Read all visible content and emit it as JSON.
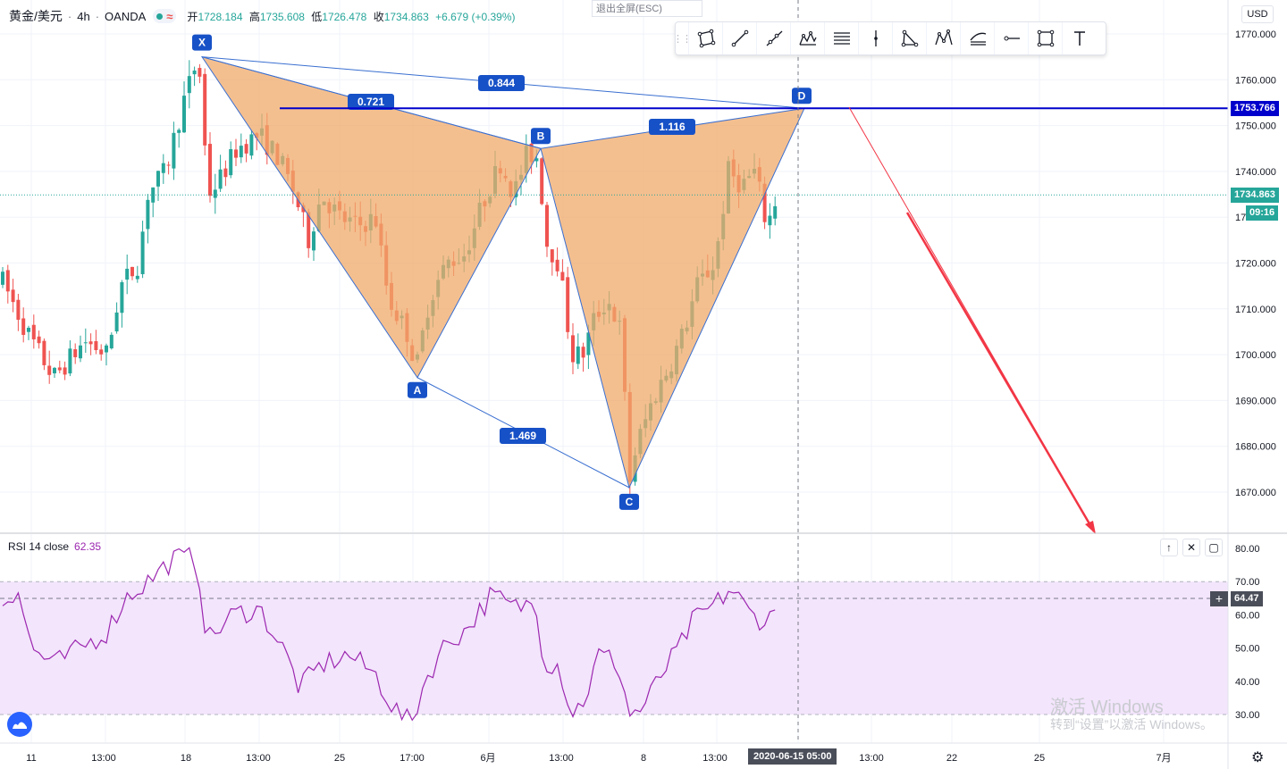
{
  "header": {
    "symbol": "黄金/美元",
    "interval": "4h",
    "broker": "OANDA",
    "wave_icon": "≈",
    "ohlc": [
      {
        "k": "开",
        "v": "1728.184"
      },
      {
        "k": "高",
        "v": "1735.608"
      },
      {
        "k": "低",
        "v": "1726.478"
      },
      {
        "k": "收",
        "v": "1734.863"
      }
    ],
    "change": "+6.679 (+0.39%)",
    "exit_fullscreen": "退出全屏(ESC)"
  },
  "toolbar": {
    "tools": [
      "polygon-icon",
      "trendline-icon",
      "ray-icon",
      "xabcd-pattern-icon",
      "fib-retracement-icon",
      "vertical-line-icon",
      "triangle-icon",
      "head-shoulders-icon",
      "parallel-channel-icon",
      "horizontal-ray-icon",
      "rectangle-icon",
      "text-icon"
    ]
  },
  "price_axis": {
    "currency": "USD",
    "ticks": [
      "1770.000",
      "1760.000",
      "1750.000",
      "1740.000",
      "1730.000",
      "1720.000",
      "1710.000",
      "1700.000",
      "1690.000",
      "1680.000",
      "1670.000"
    ],
    "ticks_v": [
      1770,
      1760,
      1750,
      1740,
      1730,
      1720,
      1710,
      1700,
      1690,
      1680,
      1670
    ],
    "hline_label": "1753.766",
    "last_price_label": "1734.863",
    "countdown": "09:16"
  },
  "rsi": {
    "label": "RSI 14 close",
    "value": "62.35",
    "crosshair_value": "64.47",
    "ticks": [
      "80.00",
      "70.00",
      "60.00",
      "50.00",
      "40.00",
      "30.00"
    ],
    "ticks_v": [
      80,
      70,
      60,
      50,
      40,
      30
    ]
  },
  "time_axis": {
    "labels": [
      "11",
      "13:00",
      "18",
      "13:00",
      "25",
      "17:00",
      "6月",
      "13:00",
      "8",
      "13:00",
      "2020-06-15",
      "05:00",
      "13:00",
      "22",
      "25",
      "7月"
    ],
    "crosshair_date": "2020-06-15  05:00"
  },
  "chart_data": {
    "type": "candlestick",
    "title": "黄金/美元 · 4h · OANDA",
    "ylim": [
      1662,
      1778
    ],
    "pattern": {
      "name": "XABCD",
      "points": [
        {
          "label": "X",
          "price": 1765
        },
        {
          "label": "A",
          "price": 1695
        },
        {
          "label": "B",
          "price": 1745
        },
        {
          "label": "C",
          "price": 1671
        },
        {
          "label": "D",
          "price": 1753.766
        }
      ],
      "ratios": {
        "XB": "0.721",
        "XD": "0.844",
        "AC": "1.469",
        "BD": "1.116"
      }
    },
    "horizontal_line": 1753.766,
    "last_price": 1734.863,
    "rsi_bands": [
      30,
      70
    ],
    "rsi_last": 62.35
  },
  "colors": {
    "up": "#26a69a",
    "down": "#ef5350",
    "pattern_fill": "#f0a96a",
    "pattern_line": "#3a6fd0",
    "hline": "#0000cc",
    "rsi_line": "#9c27b0",
    "rsi_band": "#f3e5fc"
  },
  "watermark": {
    "line1": "激活 Windows",
    "line2": "转到“设置”以激活 Windows。"
  }
}
